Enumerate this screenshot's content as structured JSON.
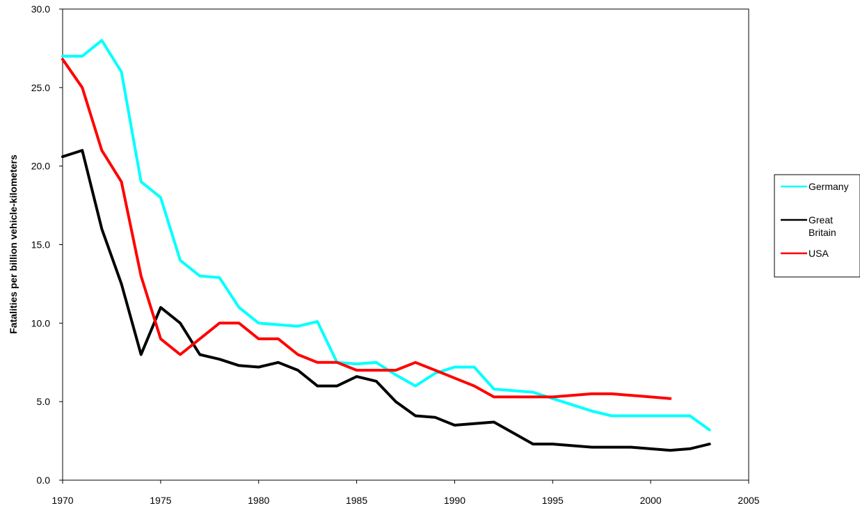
{
  "chart_data": {
    "type": "line",
    "title": "",
    "xlabel": "",
    "ylabel": "Fatalities per billion vehicle-kilometers",
    "xlim": [
      1970,
      2005
    ],
    "ylim": [
      0,
      30
    ],
    "x_ticks": [
      "1970",
      "1975",
      "1980",
      "1985",
      "1990",
      "1995",
      "2000",
      "2005"
    ],
    "y_ticks": [
      "0.0",
      "5.0",
      "10.0",
      "15.0",
      "20.0",
      "25.0",
      "30.0"
    ],
    "grid": false,
    "legend_position": "right",
    "series": [
      {
        "name": "Germany",
        "color": "#00ffff",
        "x": [
          1970,
          1971,
          1972,
          1973,
          1974,
          1975,
          1976,
          1977,
          1978,
          1979,
          1980,
          1981,
          1982,
          1983,
          1984,
          1985,
          1986,
          1987,
          1988,
          1989,
          1990,
          1991,
          1992,
          1993,
          1994,
          1995,
          1996,
          1997,
          1998,
          1999,
          2000,
          2001,
          2002,
          2003
        ],
        "y": [
          27.0,
          27.0,
          28.0,
          26.0,
          19.0,
          18.0,
          14.0,
          13.0,
          12.9,
          11.0,
          10.0,
          9.9,
          9.8,
          10.1,
          7.5,
          7.4,
          7.5,
          6.7,
          6.0,
          6.8,
          7.2,
          7.2,
          5.8,
          5.7,
          5.6,
          5.2,
          4.8,
          4.4,
          4.1,
          4.1,
          4.1,
          4.1,
          4.1,
          3.2
        ]
      },
      {
        "name": "Great\nBritain",
        "color": "#000000",
        "x": [
          1970,
          1971,
          1972,
          1973,
          1974,
          1975,
          1976,
          1977,
          1978,
          1979,
          1980,
          1981,
          1982,
          1983,
          1984,
          1985,
          1986,
          1987,
          1988,
          1989,
          1990,
          1991,
          1992,
          1993,
          1994,
          1995,
          1996,
          1997,
          1998,
          1999,
          2000,
          2001,
          2002,
          2003
        ],
        "y": [
          20.6,
          21.0,
          16.0,
          12.5,
          8.0,
          11.0,
          10.0,
          8.0,
          7.7,
          7.3,
          7.2,
          7.5,
          7.0,
          6.0,
          6.0,
          6.6,
          6.3,
          5.0,
          4.1,
          4.0,
          3.5,
          3.6,
          3.7,
          3.0,
          2.3,
          2.3,
          2.2,
          2.1,
          2.1,
          2.1,
          2.0,
          1.9,
          2.0,
          2.3
        ]
      },
      {
        "name": "USA",
        "color": "#ff0000",
        "x": [
          1970,
          1971,
          1972,
          1973,
          1974,
          1975,
          1976,
          1977,
          1978,
          1979,
          1980,
          1981,
          1982,
          1983,
          1984,
          1985,
          1986,
          1987,
          1988,
          1989,
          1990,
          1991,
          1992,
          1993,
          1994,
          1995,
          1996,
          1997,
          1998,
          1999,
          2000,
          2001
        ],
        "y": [
          26.8,
          25.0,
          21.0,
          19.0,
          13.0,
          9.0,
          8.0,
          9.0,
          10.0,
          10.0,
          9.0,
          9.0,
          8.0,
          7.5,
          7.5,
          7.0,
          7.0,
          7.0,
          7.5,
          7.0,
          6.5,
          6.0,
          5.3,
          5.3,
          5.3,
          5.3,
          5.4,
          5.5,
          5.5,
          5.4,
          5.3,
          5.2
        ]
      }
    ]
  }
}
